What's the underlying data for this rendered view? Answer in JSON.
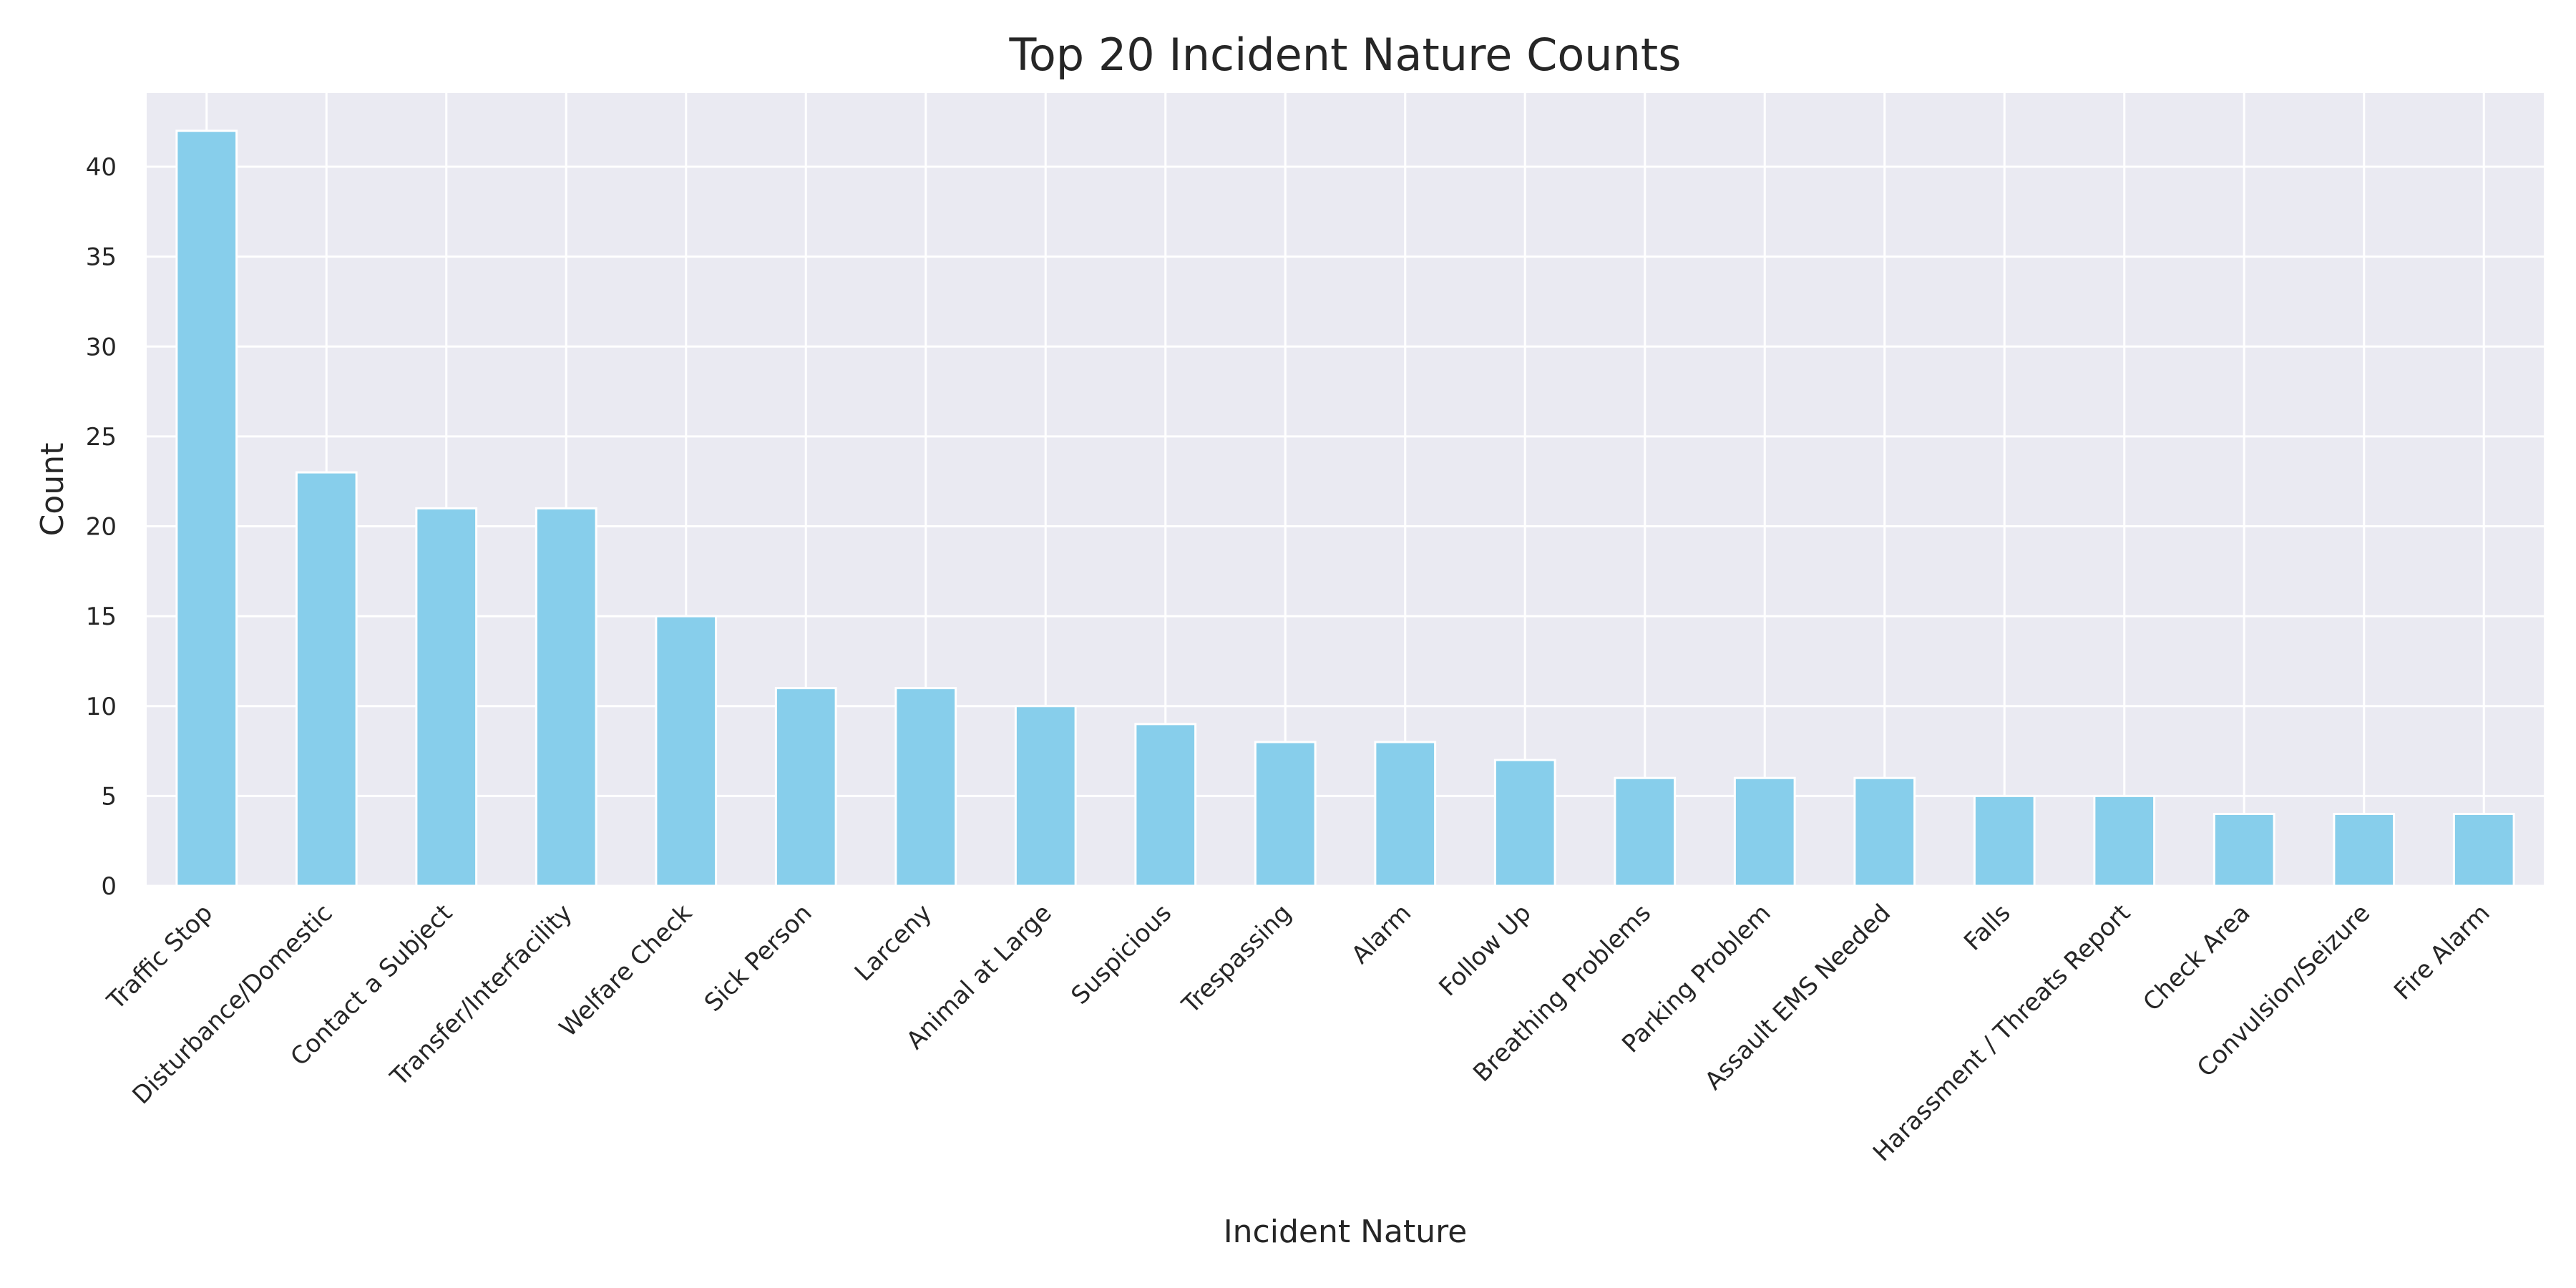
{
  "chart_data": {
    "type": "bar",
    "title": "Top 20 Incident Nature Counts",
    "xlabel": "Incident Nature",
    "ylabel": "Count",
    "categories": [
      "Traffic Stop",
      "Disturbance/Domestic",
      "Contact a Subject",
      "Transfer/Interfacility",
      "Welfare Check",
      "Sick Person",
      "Larceny",
      "Animal at Large",
      "Suspicious",
      "Trespassing",
      "Alarm",
      "Follow Up",
      "Breathing Problems",
      "Parking Problem",
      "Assault EMS Needed",
      "Falls",
      "Harassment / Threats Report",
      "Check Area",
      "Convulsion/Seizure",
      "Fire Alarm"
    ],
    "values": [
      42,
      23,
      21,
      21,
      15,
      11,
      11,
      10,
      9,
      8,
      8,
      7,
      6,
      6,
      6,
      5,
      5,
      4,
      4,
      4
    ],
    "yticks": [
      0,
      5,
      10,
      15,
      20,
      25,
      30,
      35,
      40
    ],
    "ylim": [
      0,
      44.1
    ],
    "grid": true,
    "legend": "none",
    "colors": {
      "bar": "#87ceeb",
      "plot_background": "#eaeaf2",
      "grid": "#ffffff",
      "text": "#262626"
    }
  }
}
